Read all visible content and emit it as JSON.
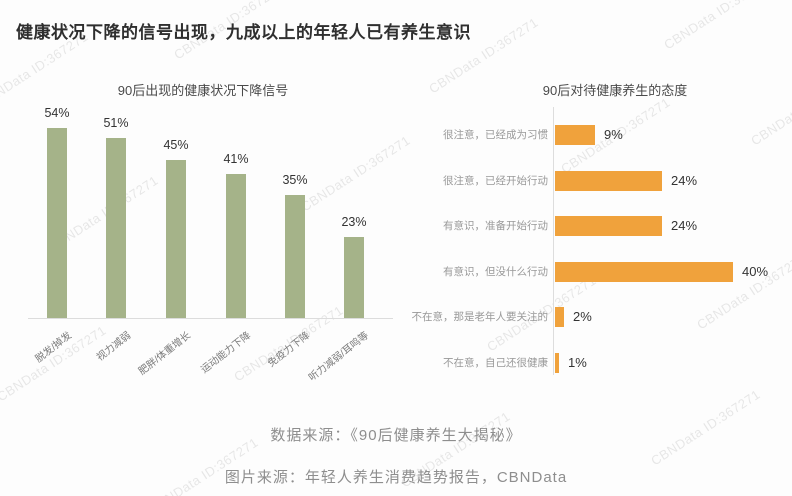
{
  "page_title": "健康状况下降的信号出现，九成以上的年轻人已有养生意识",
  "watermark": {
    "text": "CBNData ID:367271"
  },
  "chart_data": [
    {
      "type": "bar",
      "orientation": "vertical",
      "title": "90后出现的健康状况下降信号",
      "categories": [
        "脱发/掉发",
        "视力减弱",
        "肥胖/体重增长",
        "运动能力下降",
        "免疫力下降",
        "听力减弱/耳鸣等"
      ],
      "values": [
        54,
        51,
        45,
        41,
        35,
        23
      ],
      "value_labels": [
        "54%",
        "51%",
        "45%",
        "41%",
        "35%",
        "23%"
      ],
      "unit": "%",
      "bar_color": "#a5b389",
      "ylim": [
        0,
        60
      ],
      "grid": false,
      "legend": "none"
    },
    {
      "type": "bar",
      "orientation": "horizontal",
      "title": "90后对待健康养生的态度",
      "categories": [
        "很注意，已经成为习惯",
        "很注意，已经开始行动",
        "有意识，准备开始行动",
        "有意识，但没什么行动",
        "不在意，那是老年人要关注的",
        "不在意，自己还很健康"
      ],
      "values": [
        9,
        24,
        24,
        40,
        2,
        1
      ],
      "value_labels": [
        "9%",
        "24%",
        "24%",
        "40%",
        "2%",
        "1%"
      ],
      "unit": "%",
      "bar_color": "#f0a23c",
      "xlim": [
        0,
        45
      ],
      "grid": false,
      "legend": "none"
    }
  ],
  "footer": {
    "data_source": "数据来源：《90后健康养生大揭秘》",
    "image_source": "图片来源：年轻人养生消费趋势报告，CBNData"
  },
  "colors": {
    "signal_bar": "#a5b389",
    "attitude_bar": "#f0a23c",
    "title_text": "#2f2f2f",
    "caption_text": "#8e8e8e",
    "watermark_text": "#9a9a9a"
  }
}
